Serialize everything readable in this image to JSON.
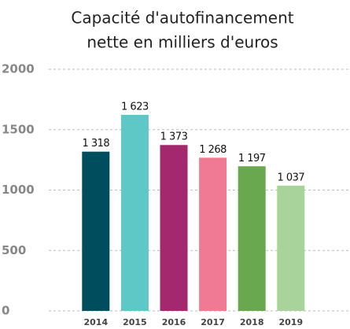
{
  "chart_data": {
    "type": "bar",
    "title": [
      "Capacité d'autofinancement",
      "nette en milliers d'euros"
    ],
    "categories": [
      "2014",
      "2015",
      "2016",
      "2017",
      "2018",
      "2019"
    ],
    "values": [
      1318,
      1623,
      1373,
      1268,
      1197,
      1037
    ],
    "value_labels": [
      "1 318",
      "1 623",
      "1 373",
      "1 268",
      "1 197",
      "1 037"
    ],
    "colors": [
      "#004d5e",
      "#5ec8c6",
      "#a3286e",
      "#f07a94",
      "#6aa84f",
      "#a8d49c"
    ],
    "ylim": [
      0,
      2000
    ],
    "yticks": [
      0,
      500,
      1000,
      1500,
      2000
    ],
    "grid": true
  }
}
